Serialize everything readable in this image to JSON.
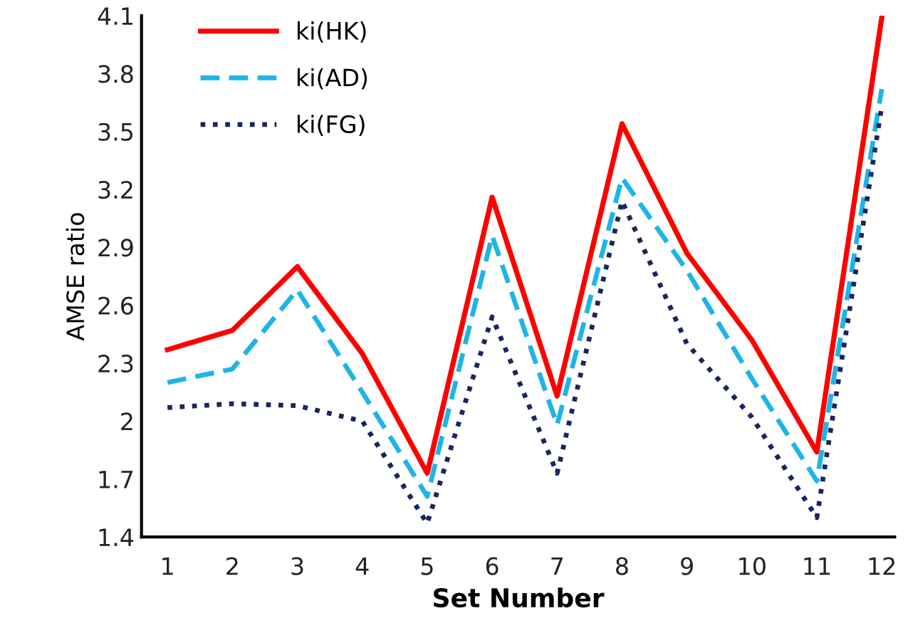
{
  "chart_data": {
    "type": "line",
    "xlabel": "Set Number",
    "ylabel": "AMSE ratio",
    "x": [
      1,
      2,
      3,
      4,
      5,
      6,
      7,
      8,
      9,
      10,
      11,
      12
    ],
    "xlim": [
      0.6,
      12.2
    ],
    "xticks": [
      1,
      2,
      3,
      4,
      5,
      6,
      7,
      8,
      9,
      10,
      11,
      12
    ],
    "ylim": [
      1.4,
      4.1
    ],
    "yticks": [
      1.4,
      1.7,
      2,
      2.3,
      2.6,
      2.9,
      3.2,
      3.5,
      3.8,
      4.1
    ],
    "grid": false,
    "legend": "top left",
    "marker": "none",
    "series": [
      {
        "name": "ki(HK)",
        "color": "#ff0000",
        "line_style": "solid",
        "values": [
          2.37,
          2.47,
          2.8,
          2.35,
          1.73,
          3.16,
          2.13,
          3.54,
          2.87,
          2.42,
          1.84,
          4.09
        ]
      },
      {
        "name": "ki(AD)",
        "color": "#1fb4e8",
        "line_style": "dashed",
        "values": [
          2.2,
          2.27,
          2.68,
          2.15,
          1.61,
          2.96,
          1.98,
          3.26,
          2.78,
          2.22,
          1.69,
          3.72
        ]
      },
      {
        "name": "ki(FG)",
        "color": "#1a2560",
        "line_style": "dotted",
        "values": [
          2.07,
          2.09,
          2.08,
          2.0,
          1.47,
          2.54,
          1.73,
          3.14,
          2.4,
          2.02,
          1.5,
          3.63
        ]
      }
    ]
  }
}
